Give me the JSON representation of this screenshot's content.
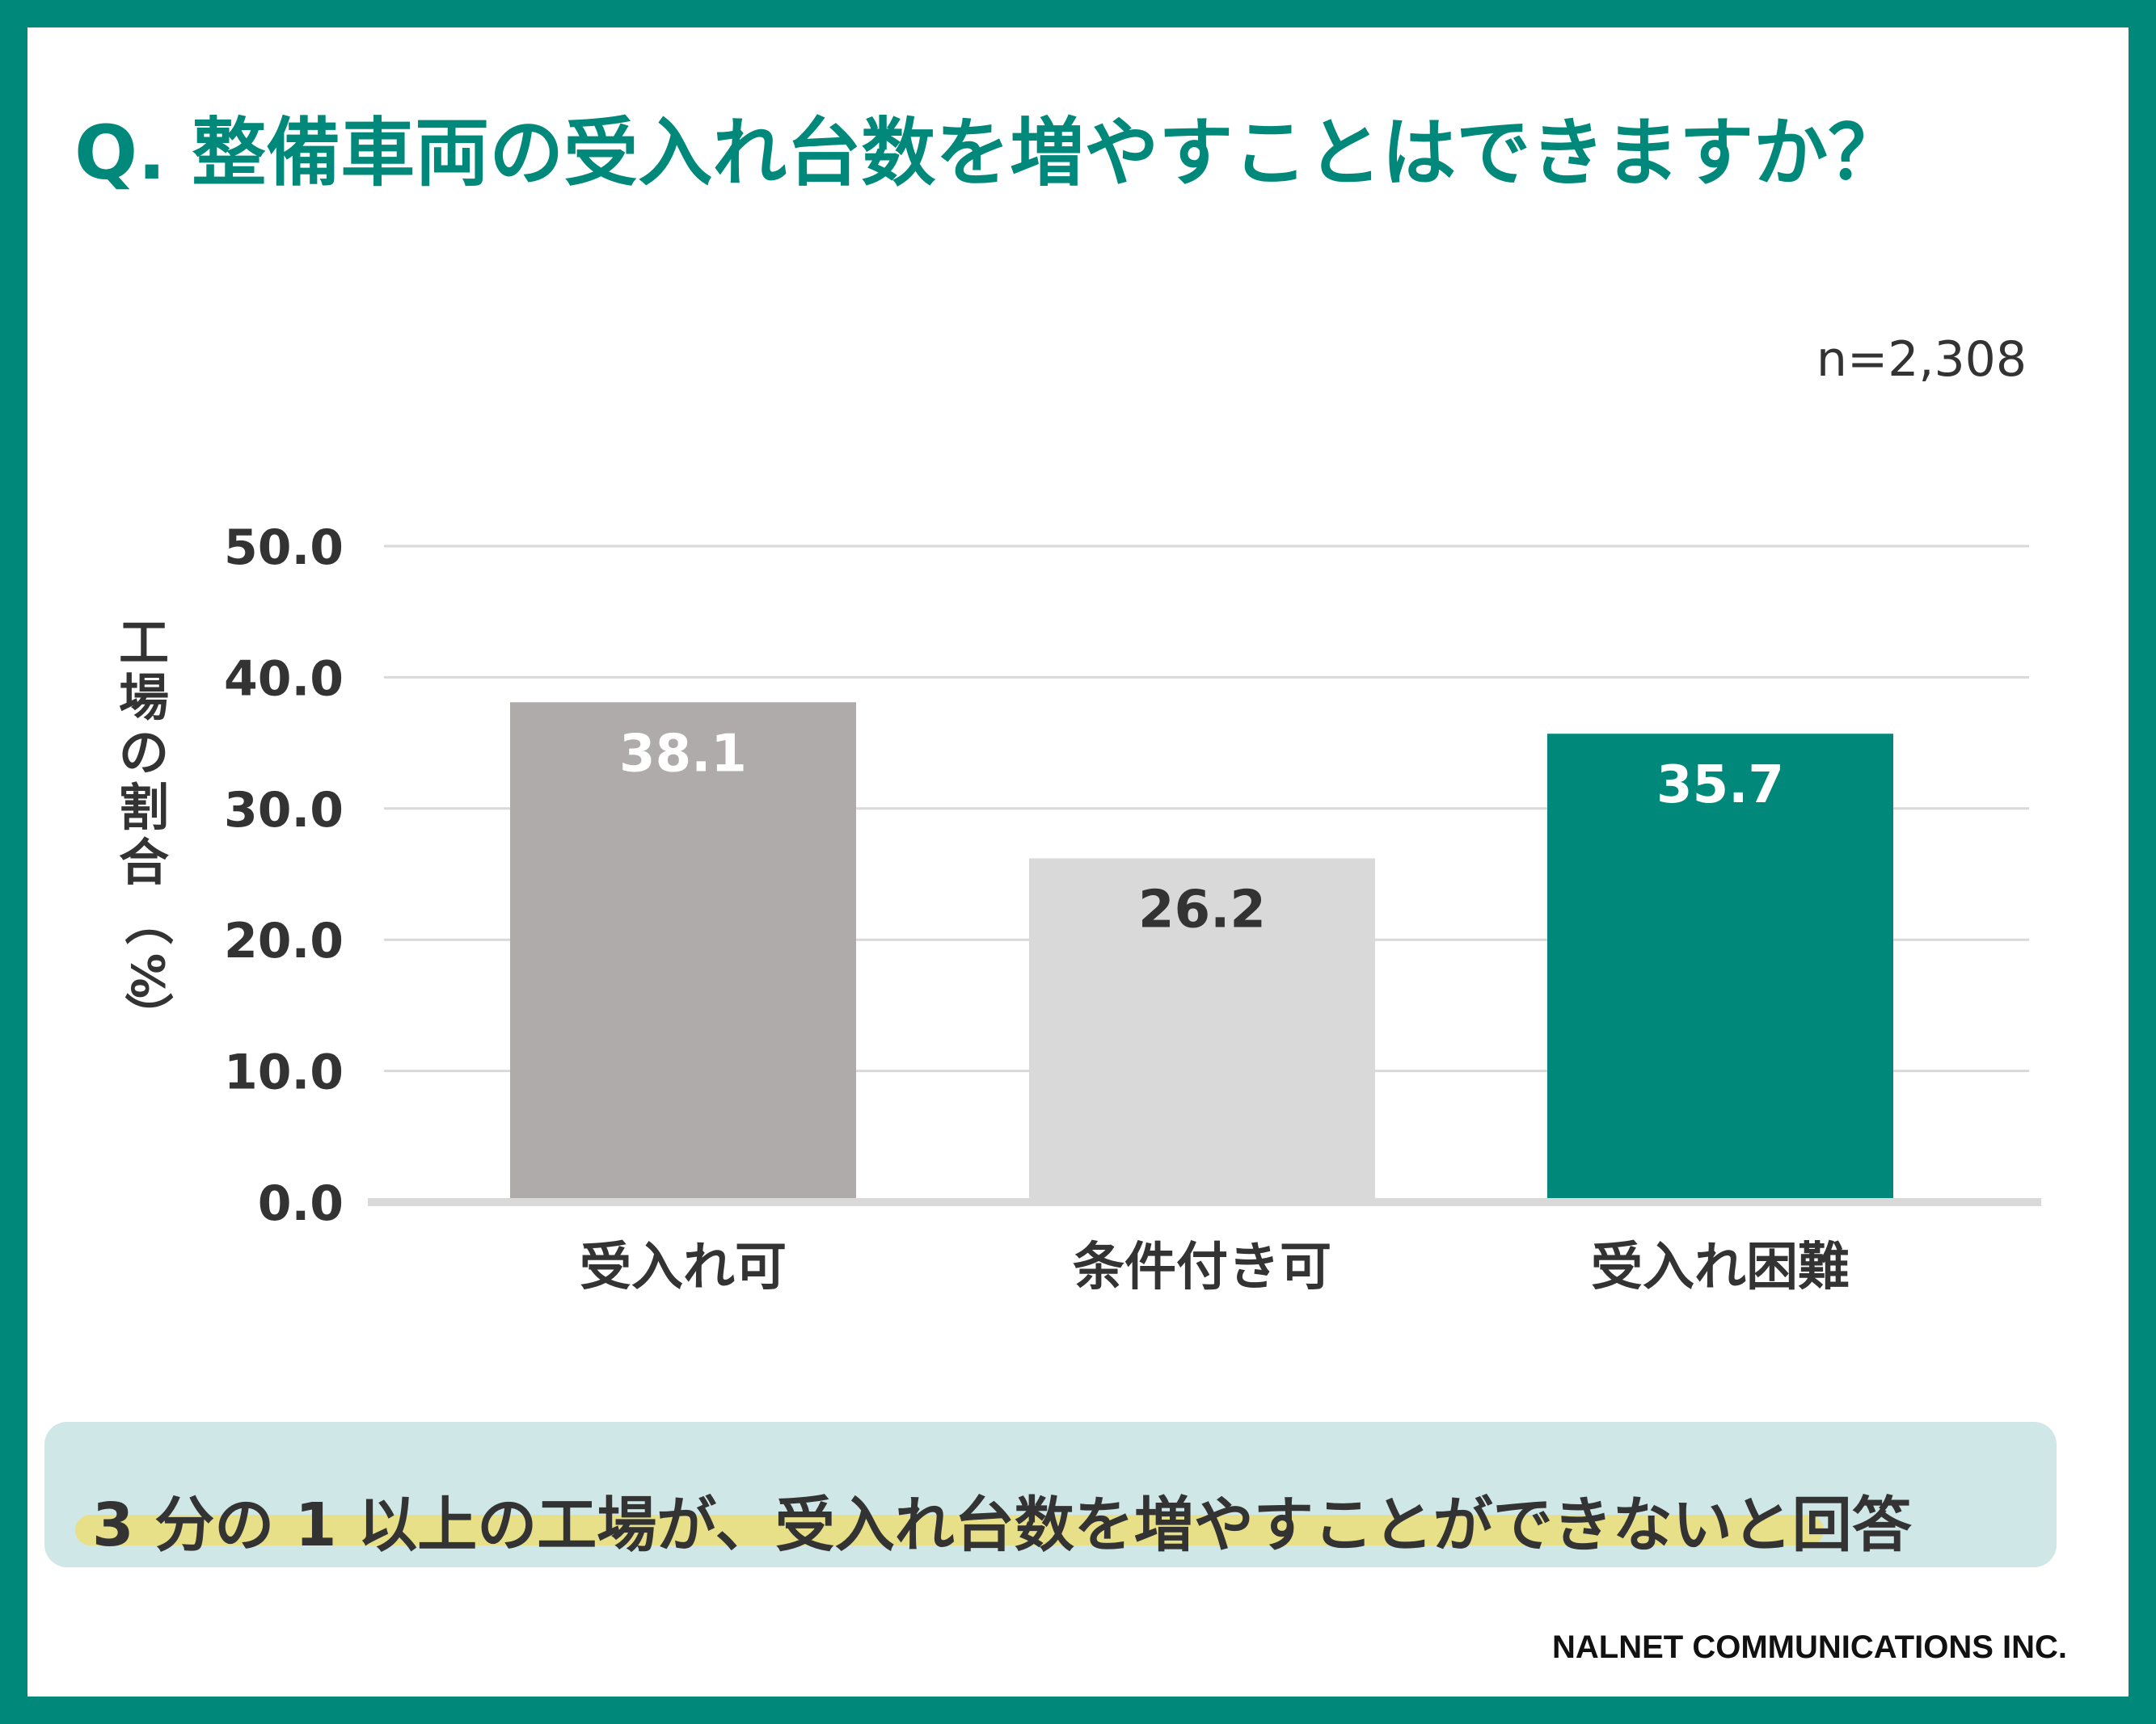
{
  "title": "Q. 整備車両の受入れ台数を増やすことはできますか？",
  "sample_size": "n=2,308",
  "callout": "3 分の 1 以上の工場が、受入れ台数を増やすことができないと回答",
  "credit": "NALNET COMMUNICATIONS INC.",
  "colors": {
    "accent": "#00897a",
    "bar_accept": "#aeabaa",
    "bar_conditional": "#d9d9d9",
    "bar_difficult": "#00897a",
    "callout_bg": "#cfe7e6",
    "highlight": "#e7e088"
  },
  "chart_data": {
    "type": "bar",
    "categories": [
      "受入れ可",
      "条件付き可",
      "受入れ困難"
    ],
    "values": [
      38.1,
      26.2,
      35.7
    ],
    "value_labels": [
      "38.1",
      "26.2",
      "35.7"
    ],
    "ylabel": "工場の割合（%）",
    "ylim": [
      0,
      50
    ],
    "yticks": [
      "0.0",
      "10.0",
      "20.0",
      "30.0",
      "40.0",
      "50.0"
    ],
    "grid": true
  }
}
